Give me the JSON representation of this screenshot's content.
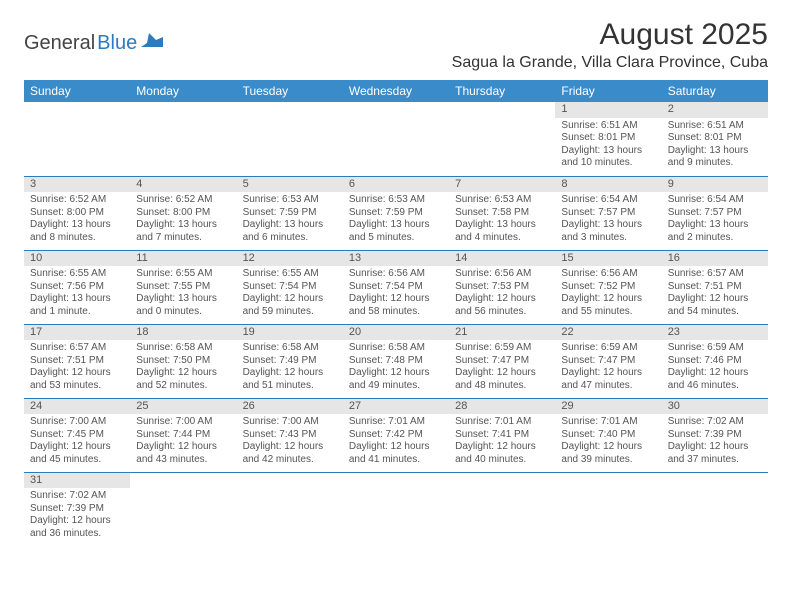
{
  "brand": {
    "part1": "General",
    "part2": "Blue"
  },
  "title": "August 2025",
  "location": "Sagua la Grande, Villa Clara Province, Cuba",
  "colors": {
    "header_bg": "#3a8bc9",
    "accent": "#2b7bbf",
    "daynum_bg": "#e6e6e6",
    "text": "#555555"
  },
  "day_headers": [
    "Sunday",
    "Monday",
    "Tuesday",
    "Wednesday",
    "Thursday",
    "Friday",
    "Saturday"
  ],
  "weeks": [
    [
      null,
      null,
      null,
      null,
      null,
      {
        "n": "1",
        "sunrise": "Sunrise: 6:51 AM",
        "sunset": "Sunset: 8:01 PM",
        "daylight": "Daylight: 13 hours and 10 minutes."
      },
      {
        "n": "2",
        "sunrise": "Sunrise: 6:51 AM",
        "sunset": "Sunset: 8:01 PM",
        "daylight": "Daylight: 13 hours and 9 minutes."
      }
    ],
    [
      {
        "n": "3",
        "sunrise": "Sunrise: 6:52 AM",
        "sunset": "Sunset: 8:00 PM",
        "daylight": "Daylight: 13 hours and 8 minutes."
      },
      {
        "n": "4",
        "sunrise": "Sunrise: 6:52 AM",
        "sunset": "Sunset: 8:00 PM",
        "daylight": "Daylight: 13 hours and 7 minutes."
      },
      {
        "n": "5",
        "sunrise": "Sunrise: 6:53 AM",
        "sunset": "Sunset: 7:59 PM",
        "daylight": "Daylight: 13 hours and 6 minutes."
      },
      {
        "n": "6",
        "sunrise": "Sunrise: 6:53 AM",
        "sunset": "Sunset: 7:59 PM",
        "daylight": "Daylight: 13 hours and 5 minutes."
      },
      {
        "n": "7",
        "sunrise": "Sunrise: 6:53 AM",
        "sunset": "Sunset: 7:58 PM",
        "daylight": "Daylight: 13 hours and 4 minutes."
      },
      {
        "n": "8",
        "sunrise": "Sunrise: 6:54 AM",
        "sunset": "Sunset: 7:57 PM",
        "daylight": "Daylight: 13 hours and 3 minutes."
      },
      {
        "n": "9",
        "sunrise": "Sunrise: 6:54 AM",
        "sunset": "Sunset: 7:57 PM",
        "daylight": "Daylight: 13 hours and 2 minutes."
      }
    ],
    [
      {
        "n": "10",
        "sunrise": "Sunrise: 6:55 AM",
        "sunset": "Sunset: 7:56 PM",
        "daylight": "Daylight: 13 hours and 1 minute."
      },
      {
        "n": "11",
        "sunrise": "Sunrise: 6:55 AM",
        "sunset": "Sunset: 7:55 PM",
        "daylight": "Daylight: 13 hours and 0 minutes."
      },
      {
        "n": "12",
        "sunrise": "Sunrise: 6:55 AM",
        "sunset": "Sunset: 7:54 PM",
        "daylight": "Daylight: 12 hours and 59 minutes."
      },
      {
        "n": "13",
        "sunrise": "Sunrise: 6:56 AM",
        "sunset": "Sunset: 7:54 PM",
        "daylight": "Daylight: 12 hours and 58 minutes."
      },
      {
        "n": "14",
        "sunrise": "Sunrise: 6:56 AM",
        "sunset": "Sunset: 7:53 PM",
        "daylight": "Daylight: 12 hours and 56 minutes."
      },
      {
        "n": "15",
        "sunrise": "Sunrise: 6:56 AM",
        "sunset": "Sunset: 7:52 PM",
        "daylight": "Daylight: 12 hours and 55 minutes."
      },
      {
        "n": "16",
        "sunrise": "Sunrise: 6:57 AM",
        "sunset": "Sunset: 7:51 PM",
        "daylight": "Daylight: 12 hours and 54 minutes."
      }
    ],
    [
      {
        "n": "17",
        "sunrise": "Sunrise: 6:57 AM",
        "sunset": "Sunset: 7:51 PM",
        "daylight": "Daylight: 12 hours and 53 minutes."
      },
      {
        "n": "18",
        "sunrise": "Sunrise: 6:58 AM",
        "sunset": "Sunset: 7:50 PM",
        "daylight": "Daylight: 12 hours and 52 minutes."
      },
      {
        "n": "19",
        "sunrise": "Sunrise: 6:58 AM",
        "sunset": "Sunset: 7:49 PM",
        "daylight": "Daylight: 12 hours and 51 minutes."
      },
      {
        "n": "20",
        "sunrise": "Sunrise: 6:58 AM",
        "sunset": "Sunset: 7:48 PM",
        "daylight": "Daylight: 12 hours and 49 minutes."
      },
      {
        "n": "21",
        "sunrise": "Sunrise: 6:59 AM",
        "sunset": "Sunset: 7:47 PM",
        "daylight": "Daylight: 12 hours and 48 minutes."
      },
      {
        "n": "22",
        "sunrise": "Sunrise: 6:59 AM",
        "sunset": "Sunset: 7:47 PM",
        "daylight": "Daylight: 12 hours and 47 minutes."
      },
      {
        "n": "23",
        "sunrise": "Sunrise: 6:59 AM",
        "sunset": "Sunset: 7:46 PM",
        "daylight": "Daylight: 12 hours and 46 minutes."
      }
    ],
    [
      {
        "n": "24",
        "sunrise": "Sunrise: 7:00 AM",
        "sunset": "Sunset: 7:45 PM",
        "daylight": "Daylight: 12 hours and 45 minutes."
      },
      {
        "n": "25",
        "sunrise": "Sunrise: 7:00 AM",
        "sunset": "Sunset: 7:44 PM",
        "daylight": "Daylight: 12 hours and 43 minutes."
      },
      {
        "n": "26",
        "sunrise": "Sunrise: 7:00 AM",
        "sunset": "Sunset: 7:43 PM",
        "daylight": "Daylight: 12 hours and 42 minutes."
      },
      {
        "n": "27",
        "sunrise": "Sunrise: 7:01 AM",
        "sunset": "Sunset: 7:42 PM",
        "daylight": "Daylight: 12 hours and 41 minutes."
      },
      {
        "n": "28",
        "sunrise": "Sunrise: 7:01 AM",
        "sunset": "Sunset: 7:41 PM",
        "daylight": "Daylight: 12 hours and 40 minutes."
      },
      {
        "n": "29",
        "sunrise": "Sunrise: 7:01 AM",
        "sunset": "Sunset: 7:40 PM",
        "daylight": "Daylight: 12 hours and 39 minutes."
      },
      {
        "n": "30",
        "sunrise": "Sunrise: 7:02 AM",
        "sunset": "Sunset: 7:39 PM",
        "daylight": "Daylight: 12 hours and 37 minutes."
      }
    ],
    [
      {
        "n": "31",
        "sunrise": "Sunrise: 7:02 AM",
        "sunset": "Sunset: 7:39 PM",
        "daylight": "Daylight: 12 hours and 36 minutes."
      },
      null,
      null,
      null,
      null,
      null,
      null
    ]
  ]
}
